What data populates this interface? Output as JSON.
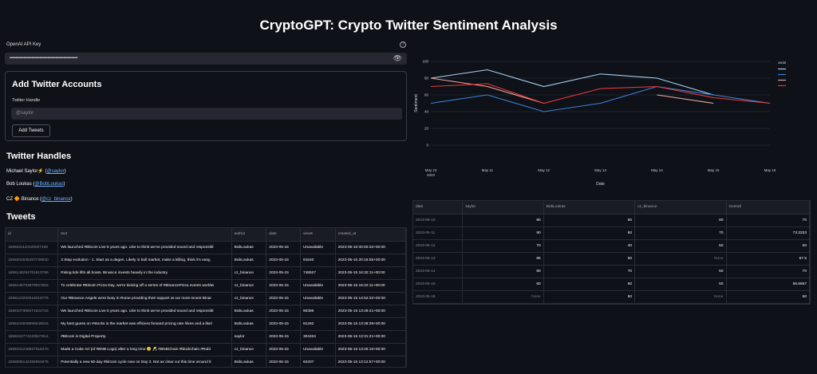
{
  "title": "CryptoGPT: Crypto Twitter Sentiment Analysis",
  "api_key": {
    "label": "OpenAI API Key",
    "value": "••••••••••••••••••••••••••••••••••••••••••••••••••••••••••••••••••••",
    "help_icon": "?",
    "eye_icon": "👁"
  },
  "add_accounts": {
    "title": "Add Twitter Accounts",
    "handle_label": "Twitter Handle",
    "handle_placeholder": "@saylor",
    "button": "Add Tweets"
  },
  "handles": {
    "title": "Twitter Handles",
    "items": [
      {
        "name": "Michael Saylor⚡ (",
        "handle": "@saylor",
        "close": ")"
      },
      {
        "name": "Bob Loukas (",
        "handle": "@BobLoukas",
        "close": ")"
      },
      {
        "name": "CZ 🔶 Binance (",
        "handle": "@cz_binance",
        "close": ")"
      }
    ]
  },
  "tweets": {
    "title": "Tweets",
    "columns": [
      "id",
      "text",
      "author",
      "date",
      "views",
      "created_at"
    ],
    "rows": [
      [
        "1658261110426927108",
        "We launched #Bitcoin Live 5 years ago. Like to think we've provided sound and responsibl",
        "BobLoukas",
        "2023-05-16",
        "Unavailable",
        "2023-05-16 00:00:32+00:00"
      ],
      [
        "1658204835487739920",
        "3 Step evolution - 1. Start as a degen. Likely in bull market, make a killing, think it's easy,",
        "BobLoukas",
        "2023-05-15",
        "81640",
        "2023-05-15 20:16:55+00:00"
      ],
      [
        "1658148281761910786",
        "Rising tide lifts all boats. Binance invests heavily in the industry",
        "cz_binance",
        "2023-05-15",
        "748527",
        "2023-05-15 16:32:11+00:00"
      ],
      [
        "1658145763979927552",
        "To celebrate #Bitcoin Pizza Day, we're kicking off a series of #BinancePizza events worldw",
        "cz_binance",
        "2023-05-15",
        "Unavailable",
        "2023-05-15 16:22:11+00:00"
      ],
      [
        "1658123202515019776",
        "Our #Binance Angels were busy in Rome providing their support at our most recent Binar",
        "cz_binance",
        "2023-05-15",
        "Unavailable",
        "2023-05-15 14:52:32+00:00"
      ],
      [
        "1658107386471624718",
        "We launched #Bitcoin Live 5 years ago. Like to think we've provided sound and responsibl",
        "BobLoukas",
        "2023-05-15",
        "80386",
        "2023-05-15 13:49:41+00:00"
      ],
      [
        "1658104608898646016",
        "My best guess on #stocks is the market was efficient forward pricing rate hikes and a likel",
        "BobLoukas",
        "2023-05-15",
        "81262",
        "2023-05-15 13:38:39+00:00"
      ],
      [
        "1658102772220527814",
        "#Bitcoin is Digital Property.",
        "saylor",
        "2023-05-15",
        "304404",
        "2023-05-15 13:31:21+00:00"
      ],
      [
        "1658101238827315370",
        "Made a Cube Art (of #BNB Logo) after a long time 😊 🥂 #BNBChain #blockchain #Rubi",
        "cz_binance",
        "2023-05-15",
        "Unavailable",
        "2023-05-15 13:25:15+00:00"
      ],
      [
        "1658098144355954976",
        "Potentially a new 60-day #bitcoin cycle now on Day 3. Not as clear cut this time around tl",
        "BobLoukas",
        "2023-05-15",
        "62207",
        "2023-05-15 13:12:57+00:00"
      ]
    ]
  },
  "sentiment_table": {
    "columns": [
      "date",
      "saylor",
      "BobLoukas",
      "cz_binance",
      "Overall"
    ],
    "rows": [
      [
        "2023-05-10",
        "80",
        "50",
        "80",
        "70"
      ],
      [
        "2023-05-11",
        "90",
        "60",
        "70",
        "73.3333"
      ],
      [
        "2023-05-12",
        "70",
        "40",
        "50",
        "50"
      ],
      [
        "2023-05-13",
        "85",
        "50",
        "None",
        "67.5"
      ],
      [
        "2023-05-14",
        "80",
        "70",
        "60",
        "70"
      ],
      [
        "2023-05-15",
        "60",
        "60",
        "50",
        "56.6667"
      ],
      [
        "2023-05-16",
        "None",
        "50",
        "None",
        "50"
      ]
    ]
  },
  "chart_data": {
    "type": "line",
    "x": [
      "May 10\n2023",
      "May 11",
      "May 12",
      "May 13",
      "May 14",
      "May 15",
      "May 16"
    ],
    "xlabel": "Date",
    "ylabel": "Sentiment",
    "ylim": [
      0,
      100
    ],
    "yticks": [
      0,
      20,
      40,
      60,
      80,
      100
    ],
    "legend_title": "variable",
    "legend_position": "right",
    "grid": true,
    "series": [
      {
        "name": "saylor",
        "color": "#a9d3f5",
        "values": [
          80,
          90,
          70,
          85,
          80,
          60,
          null
        ]
      },
      {
        "name": "BobLoukas",
        "color": "#3b82d6",
        "values": [
          50,
          60,
          40,
          50,
          70,
          60,
          50
        ]
      },
      {
        "name": "cz_binance",
        "color": "#f0a8a0",
        "values": [
          80,
          70,
          50,
          null,
          60,
          50,
          null
        ]
      },
      {
        "name": "Overall",
        "color": "#e83a3a",
        "values": [
          70,
          73.3333,
          50,
          67.5,
          70,
          56.6667,
          50
        ]
      }
    ]
  }
}
